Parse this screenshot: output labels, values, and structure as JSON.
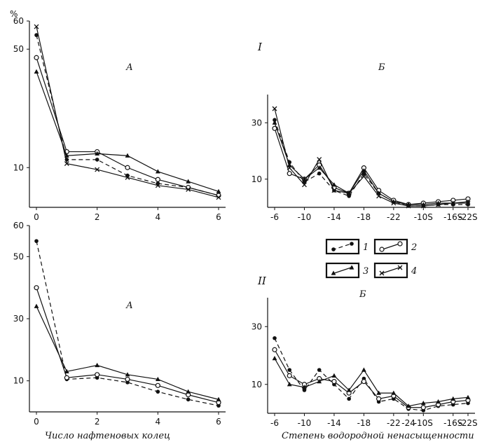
{
  "figure": {
    "roman_top": "I",
    "roman_bottom": "II",
    "percent_unit": "%",
    "xlabel_left": "Число нафтеновых колец",
    "xlabel_right": "Степень водородной ненасыщенности",
    "legend": [
      {
        "key": "1",
        "marker": "dot",
        "line": "solid"
      },
      {
        "key": "2",
        "marker": "circle",
        "line": "solid"
      },
      {
        "key": "3",
        "marker": "triangle",
        "line": "solid"
      },
      {
        "key": "4",
        "marker": "cross",
        "line": "solid"
      }
    ]
  },
  "chart_data": [
    {
      "type": "line",
      "panel": "I-A",
      "title": "А",
      "x": [
        0,
        1,
        2,
        3,
        4,
        5,
        6
      ],
      "xticks": [
        "0",
        "2",
        "4",
        "6"
      ],
      "yticks": [
        "10",
        "50",
        "60"
      ],
      "series": [
        {
          "name": "1",
          "values": [
            55,
            12,
            12,
            8,
            6,
            5,
            3
          ]
        },
        {
          "name": "2",
          "values": [
            47,
            14,
            14,
            10,
            7,
            5,
            3
          ]
        },
        {
          "name": "3",
          "values": [
            42,
            13,
            13.5,
            13,
            9,
            6.5,
            4
          ]
        },
        {
          "name": "4",
          "values": [
            58,
            11,
            9.5,
            7.5,
            5.5,
            4.5,
            2.5
          ]
        }
      ]
    },
    {
      "type": "line",
      "panel": "I-Б",
      "title": "Б",
      "x": [
        "-6",
        "-8",
        "-10",
        "-12",
        "-14",
        "-16",
        "-18",
        "-20",
        "-22",
        "-24",
        "-10S",
        "-14S",
        "-16S",
        "-22S"
      ],
      "xticks": [
        "-6",
        "-10",
        "-14",
        "-18",
        "-22",
        "-10S",
        "-16S",
        "-22S"
      ],
      "yticks": [
        "10",
        "30"
      ],
      "series": [
        {
          "name": "1",
          "values": [
            31,
            16,
            9,
            12,
            6,
            4,
            12,
            5,
            2,
            0.5,
            0.5,
            1,
            1,
            1
          ]
        },
        {
          "name": "2",
          "values": [
            28,
            12,
            10,
            15,
            7,
            5,
            14,
            6,
            2.5,
            1,
            1.5,
            2,
            2.5,
            3
          ]
        },
        {
          "name": "3",
          "values": [
            30,
            15,
            10,
            14,
            8,
            5,
            13,
            5,
            2,
            1,
            1,
            1.5,
            1.5,
            2
          ]
        },
        {
          "name": "4",
          "values": [
            35,
            14,
            8,
            17,
            6,
            5,
            11,
            4,
            1.5,
            0.5,
            0.5,
            1,
            1.5,
            1.5
          ]
        }
      ]
    },
    {
      "type": "line",
      "panel": "II-A",
      "title": "А",
      "x": [
        0,
        1,
        2,
        3,
        4,
        5,
        6
      ],
      "xticks": [
        "0",
        "2",
        "4",
        "6"
      ],
      "yticks": [
        "10",
        "30",
        "50",
        "60"
      ],
      "series": [
        {
          "name": "1",
          "values": [
            55,
            10.5,
            11,
            9.5,
            6.5,
            4,
            2
          ]
        },
        {
          "name": "2",
          "values": [
            40,
            11,
            12,
            10.5,
            8.5,
            5.5,
            3
          ]
        },
        {
          "name": "3",
          "values": [
            34,
            13,
            15,
            12,
            10.5,
            6.5,
            4
          ]
        }
      ]
    },
    {
      "type": "line",
      "panel": "II-Б",
      "title": "Б",
      "x": [
        "-6",
        "-8",
        "-10",
        "-12",
        "-14",
        "-16",
        "-18",
        "-20",
        "-22",
        "-24",
        "-10S",
        "-14S",
        "-16S",
        "-22S"
      ],
      "xticks": [
        "-6",
        "-10",
        "-14",
        "-18",
        "-22",
        "-24",
        "-10S",
        "-16S",
        "-22S"
      ],
      "yticks": [
        "10",
        "30"
      ],
      "series": [
        {
          "name": "1",
          "values": [
            26,
            15,
            8,
            15,
            10,
            5,
            12,
            4,
            5,
            1.5,
            1,
            2.5,
            3,
            3.5
          ]
        },
        {
          "name": "2",
          "values": [
            22,
            13,
            10,
            12,
            11,
            7,
            11,
            5,
            6,
            2,
            2,
            3,
            4,
            4.5
          ]
        },
        {
          "name": "3",
          "values": [
            19,
            10,
            9,
            11,
            13,
            8,
            15,
            7,
            7,
            2.5,
            3.5,
            4,
            5,
            5.5
          ]
        }
      ]
    }
  ]
}
